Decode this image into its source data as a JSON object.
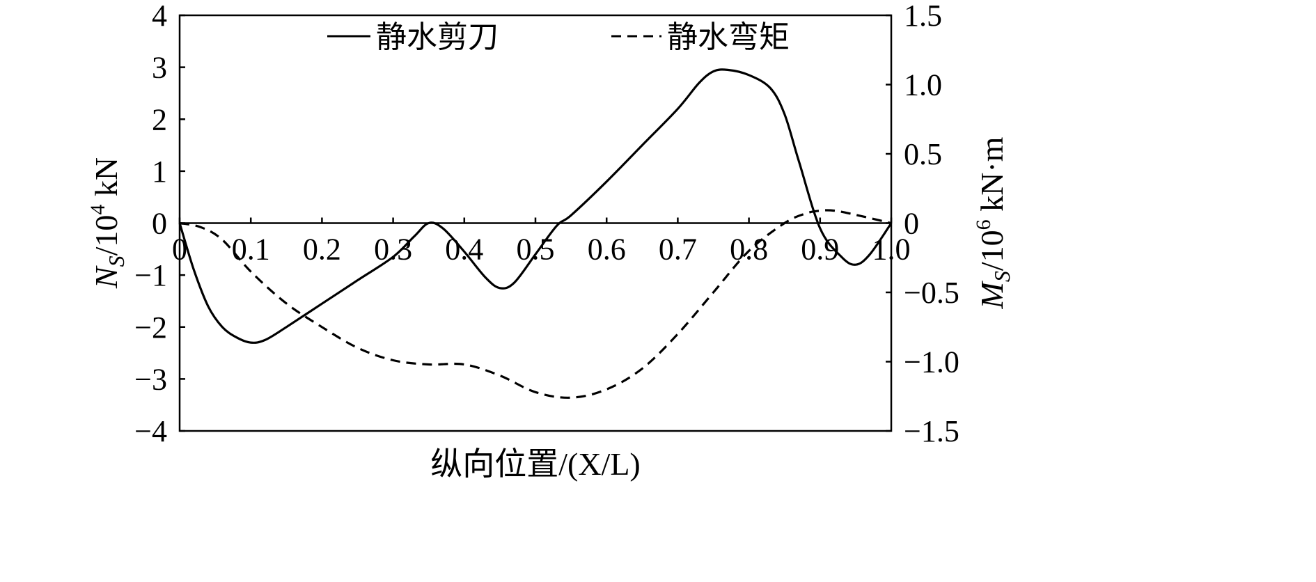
{
  "chart_data": {
    "type": "line",
    "xlabel": "纵向位置/(X/L)",
    "ylabel_left": "N_S/10^4 kN",
    "ylabel_right": "M_S/10^6 kN·m",
    "xlim": [
      0,
      1.0
    ],
    "ylim_left": [
      -4,
      4
    ],
    "ylim_right": [
      -1.5,
      1.5
    ],
    "x_ticks": [
      0,
      0.1,
      0.2,
      0.3,
      0.4,
      0.5,
      0.6,
      0.7,
      0.8,
      0.9,
      1.0
    ],
    "x_tick_labels": [
      "0",
      "0.1",
      "0.2",
      "0.3",
      "0.4",
      "0.5",
      "0.6",
      "0.7",
      "0.8",
      "0.9",
      "1.0"
    ],
    "y_left_ticks": [
      4,
      3,
      2,
      1,
      0,
      -1,
      -2,
      -3,
      -4
    ],
    "y_left_tick_labels": [
      "4",
      "3",
      "2",
      "1",
      "0",
      "−1",
      "−2",
      "−3",
      "−4"
    ],
    "y_right_ticks": [
      1.5,
      1.0,
      0.5,
      0,
      -0.5,
      -1.0,
      -1.5
    ],
    "y_right_tick_labels": [
      "1.5",
      "1.0",
      "0.5",
      "0",
      "−0.5",
      "−1.0",
      "−1.5"
    ],
    "grid": false,
    "legend_position": "top",
    "zero_line": true,
    "series": [
      {
        "name": "静水剪刀",
        "axis": "left",
        "style": "solid",
        "color": "#000000",
        "x": [
          0,
          0.02,
          0.04,
          0.06,
          0.08,
          0.1,
          0.12,
          0.15,
          0.2,
          0.25,
          0.3,
          0.33,
          0.35,
          0.37,
          0.4,
          0.43,
          0.45,
          0.47,
          0.5,
          0.53,
          0.55,
          0.6,
          0.65,
          0.7,
          0.73,
          0.75,
          0.77,
          0.8,
          0.83,
          0.85,
          0.87,
          0.9,
          0.93,
          0.95,
          0.97,
          1.0
        ],
        "y": [
          0,
          -0.9,
          -1.6,
          -2.0,
          -2.2,
          -2.3,
          -2.25,
          -2.0,
          -1.55,
          -1.1,
          -0.65,
          -0.25,
          0.0,
          -0.1,
          -0.55,
          -1.05,
          -1.25,
          -1.15,
          -0.6,
          -0.05,
          0.15,
          0.8,
          1.5,
          2.2,
          2.7,
          2.92,
          2.95,
          2.85,
          2.6,
          2.1,
          1.2,
          -0.1,
          -0.65,
          -0.8,
          -0.6,
          0
        ]
      },
      {
        "name": "静水弯矩",
        "axis": "right",
        "style": "dashed",
        "color": "#000000",
        "x": [
          0,
          0.03,
          0.06,
          0.1,
          0.15,
          0.2,
          0.25,
          0.3,
          0.35,
          0.4,
          0.45,
          0.5,
          0.55,
          0.6,
          0.65,
          0.7,
          0.75,
          0.8,
          0.85,
          0.88,
          0.9,
          0.92,
          0.95,
          1.0
        ],
        "y": [
          0,
          -0.03,
          -0.12,
          -0.35,
          -0.58,
          -0.75,
          -0.9,
          -0.99,
          -1.02,
          -1.02,
          -1.1,
          -1.22,
          -1.26,
          -1.2,
          -1.05,
          -0.8,
          -0.5,
          -0.2,
          0.0,
          0.07,
          0.09,
          0.09,
          0.06,
          0
        ]
      }
    ]
  }
}
